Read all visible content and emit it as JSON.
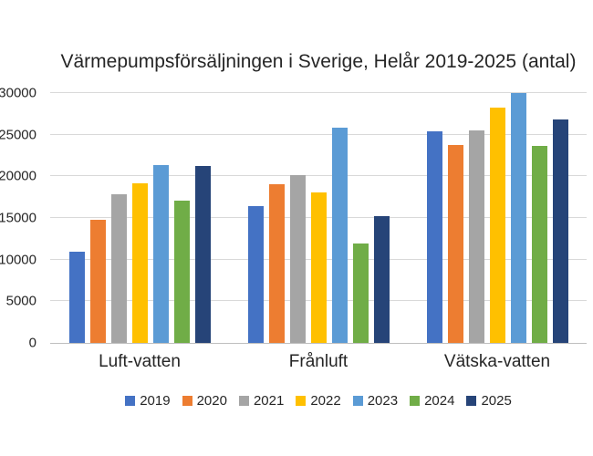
{
  "chart_data": {
    "type": "bar",
    "title": "Värmepumpsförsäljningen i Sverige, Helår 2019-2025 (antal)",
    "categories": [
      "Luft-vatten",
      "Frånluft",
      "Vätska-vatten"
    ],
    "series": [
      {
        "name": "2019",
        "color": "#4472C4",
        "values": [
          11000,
          16400,
          25400
        ]
      },
      {
        "name": "2020",
        "color": "#ED7D31",
        "values": [
          14800,
          19000,
          23800
        ]
      },
      {
        "name": "2021",
        "color": "#A5A5A5",
        "values": [
          17900,
          20100,
          25500
        ]
      },
      {
        "name": "2022",
        "color": "#FFC000",
        "values": [
          19200,
          18100,
          28200
        ]
      },
      {
        "name": "2023",
        "color": "#5B9BD5",
        "values": [
          21300,
          25800,
          30000
        ]
      },
      {
        "name": "2024",
        "color": "#70AD47",
        "values": [
          17100,
          11900,
          23600
        ]
      },
      {
        "name": "2025",
        "color": "#264478",
        "values": [
          21200,
          15200,
          26800
        ]
      }
    ],
    "xlabel": "",
    "ylabel": "",
    "ylim": [
      0,
      30000
    ],
    "ytick_step": 5000,
    "yticks": [
      "0",
      "5000",
      "10000",
      "15000",
      "20000",
      "25000",
      "30000"
    ],
    "grid": true,
    "legend_position": "bottom",
    "background_color": "#ffffff",
    "gridline_color": "#d9d9d9",
    "axis_line_color": "#bfbfbf",
    "text_color": "#262626"
  }
}
